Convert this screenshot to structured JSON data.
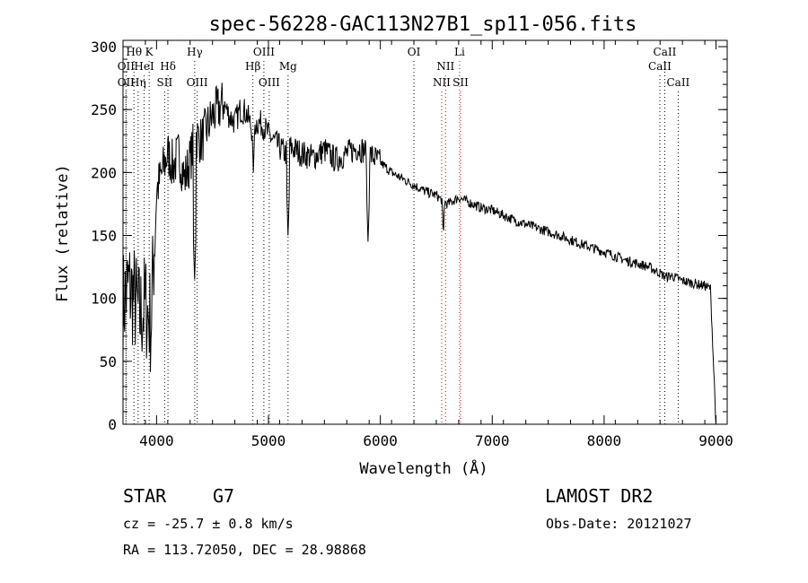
{
  "chart_data": {
    "type": "line",
    "title": "spec-56228-GAC113N27B1_sp11-056.fits",
    "xlabel": "Wavelength (Å)",
    "ylabel": "Flux (relative)",
    "xlim": [
      3700,
      9100
    ],
    "ylim": [
      0,
      305
    ],
    "x_ticks": [
      4000,
      5000,
      6000,
      7000,
      8000,
      9000
    ],
    "y_ticks": [
      0,
      50,
      100,
      150,
      200,
      250,
      300
    ],
    "grid": false,
    "series": [
      {
        "color": "#000000",
        "x": [
          3700,
          3750,
          3800,
          3850,
          3900,
          3950,
          4000,
          4050,
          4100,
          4150,
          4200,
          4250,
          4300,
          4350,
          4400,
          4450,
          4500,
          4550,
          4600,
          4650,
          4700,
          4750,
          4800,
          4850,
          4900,
          4950,
          5000,
          5050,
          5100,
          5150,
          5200,
          5300,
          5400,
          5500,
          5600,
          5700,
          5800,
          5900,
          6000,
          6100,
          6200,
          6300,
          6400,
          6500,
          6550,
          6600,
          6700,
          6800,
          6900,
          7000,
          7200,
          7400,
          7600,
          7800,
          8000,
          8200,
          8400,
          8500,
          8550,
          8600,
          8700,
          8800,
          8900,
          8950,
          9000
        ],
        "y": [
          95,
          110,
          100,
          85,
          95,
          80,
          185,
          200,
          215,
          205,
          215,
          195,
          210,
          230,
          225,
          235,
          245,
          250,
          255,
          245,
          240,
          250,
          248,
          235,
          240,
          238,
          230,
          225,
          220,
          215,
          220,
          215,
          212,
          218,
          210,
          215,
          220,
          215,
          208,
          200,
          195,
          190,
          185,
          182,
          178,
          175,
          180,
          176,
          172,
          170,
          162,
          156,
          150,
          143,
          137,
          130,
          125,
          120,
          117,
          118,
          114,
          112,
          110,
          108,
          0
        ]
      }
    ],
    "absorption_dips": [
      {
        "x": 4340,
        "y": 115
      },
      {
        "x": 4865,
        "y": 200
      },
      {
        "x": 5175,
        "y": 150
      },
      {
        "x": 5890,
        "y": 145
      },
      {
        "x": 6563,
        "y": 148
      }
    ],
    "line_markers": [
      {
        "label": "Hθ",
        "wave": 3798,
        "row": 1,
        "color": "#000000"
      },
      {
        "label": "K",
        "wave": 3934,
        "row": 1,
        "color": "#000000"
      },
      {
        "label": "OII",
        "wave": 3727,
        "row": 2,
        "color": "#000000"
      },
      {
        "label": "HeI",
        "wave": 3889,
        "row": 2,
        "color": "#000000"
      },
      {
        "label": "Hδ",
        "wave": 4102,
        "row": 2,
        "color": "#000000"
      },
      {
        "label": "OII",
        "wave": 3727,
        "row": 3,
        "color": "#000000"
      },
      {
        "label": "Hη",
        "wave": 3835,
        "row": 3,
        "color": "#000000"
      },
      {
        "label": "SII",
        "wave": 4072,
        "row": 3,
        "color": "#000000"
      },
      {
        "label": "Hγ",
        "wave": 4341,
        "row": 1,
        "color": "#000000"
      },
      {
        "label": "OIII",
        "wave": 4363,
        "row": 3,
        "color": "#000000"
      },
      {
        "label": "OIII",
        "wave": 4959,
        "row": 1,
        "color": "#000000"
      },
      {
        "label": "Hβ",
        "wave": 4861,
        "row": 2,
        "color": "#000000"
      },
      {
        "label": "Mg",
        "wave": 5175,
        "row": 2,
        "color": "#000000"
      },
      {
        "label": "OIII",
        "wave": 5007,
        "row": 3,
        "color": "#000000"
      },
      {
        "label": "OI",
        "wave": 6300,
        "row": 1,
        "color": "#000000"
      },
      {
        "label": "Li",
        "wave": 6708,
        "row": 1,
        "color": "#cc0000"
      },
      {
        "label": "NII",
        "wave": 6583,
        "row": 2,
        "color": "#cc0000"
      },
      {
        "label": "NII",
        "wave": 6548,
        "row": 3,
        "color": "#cc0000"
      },
      {
        "label": "SII",
        "wave": 6717,
        "row": 3,
        "color": "#cc0000"
      },
      {
        "label": "CaII",
        "wave": 8542,
        "row": 1,
        "color": "#000000"
      },
      {
        "label": "CaII",
        "wave": 8498,
        "row": 2,
        "color": "#000000"
      },
      {
        "label": "CaII",
        "wave": 8662,
        "row": 3,
        "color": "#000000"
      }
    ],
    "extra_ticks_label_offset": 0
  },
  "info": {
    "object_class": "STAR",
    "subclass": "G7",
    "survey": "LAMOST DR2",
    "redshift": "cz = -25.7 ± 0.8 km/s",
    "obs_date": "Obs-Date: 20121027",
    "coords": "RA = 113.72050, DEC =  28.98868"
  }
}
